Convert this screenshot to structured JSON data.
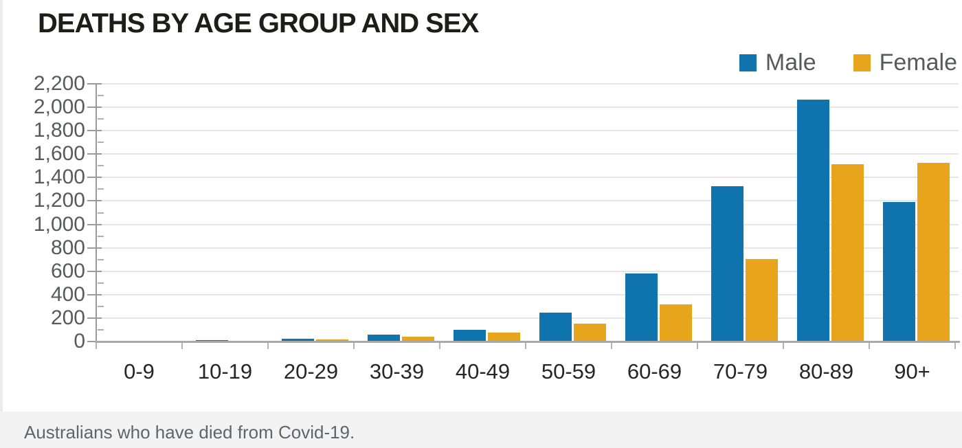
{
  "title": "DEATHS BY AGE GROUP AND SEX",
  "caption": "Australians who have died from Covid-19.",
  "legend": {
    "items": [
      {
        "label": "Male",
        "color": "#0f73ad",
        "icon": "square-swatch"
      },
      {
        "label": "Female",
        "color": "#e8a41a",
        "icon": "square-swatch"
      }
    ]
  },
  "colors": {
    "male": "#0f73ad",
    "female": "#e8a41a",
    "title_text": "#1d1d1b",
    "axis_label_text": "#58595b",
    "x_label_text": "#262626",
    "gridline": "#e5e5e5",
    "axis_line": "#9a9a9a",
    "caption_background": "#f3f3f3",
    "caption_text": "#5c666e"
  },
  "chart_data": {
    "type": "bar",
    "title": "DEATHS BY AGE GROUP AND SEX",
    "categories": [
      "0-9",
      "10-19",
      "20-29",
      "30-39",
      "40-49",
      "50-59",
      "60-69",
      "70-79",
      "80-89",
      "90+"
    ],
    "series": [
      {
        "name": "Male",
        "color": "#0f73ad",
        "values": [
          2,
          3,
          16,
          55,
          93,
          240,
          577,
          1320,
          2062,
          1186
        ]
      },
      {
        "name": "Female",
        "color": "#e8a41a",
        "values": [
          1,
          2,
          11,
          35,
          71,
          148,
          311,
          700,
          1508,
          1521
        ]
      }
    ],
    "xlabel": "",
    "ylabel": "",
    "ylim": [
      0,
      2200
    ],
    "ytick_step": 200,
    "ytick_labels": [
      "0",
      "200",
      "400",
      "600",
      "800",
      "1,000",
      "1,200",
      "1,400",
      "1,600",
      "1,800",
      "2,000",
      "2,200"
    ],
    "minor_tick_step": 100,
    "grid": true,
    "legend_position": "top-right",
    "annotation": "Australians who have died from Covid-19."
  }
}
